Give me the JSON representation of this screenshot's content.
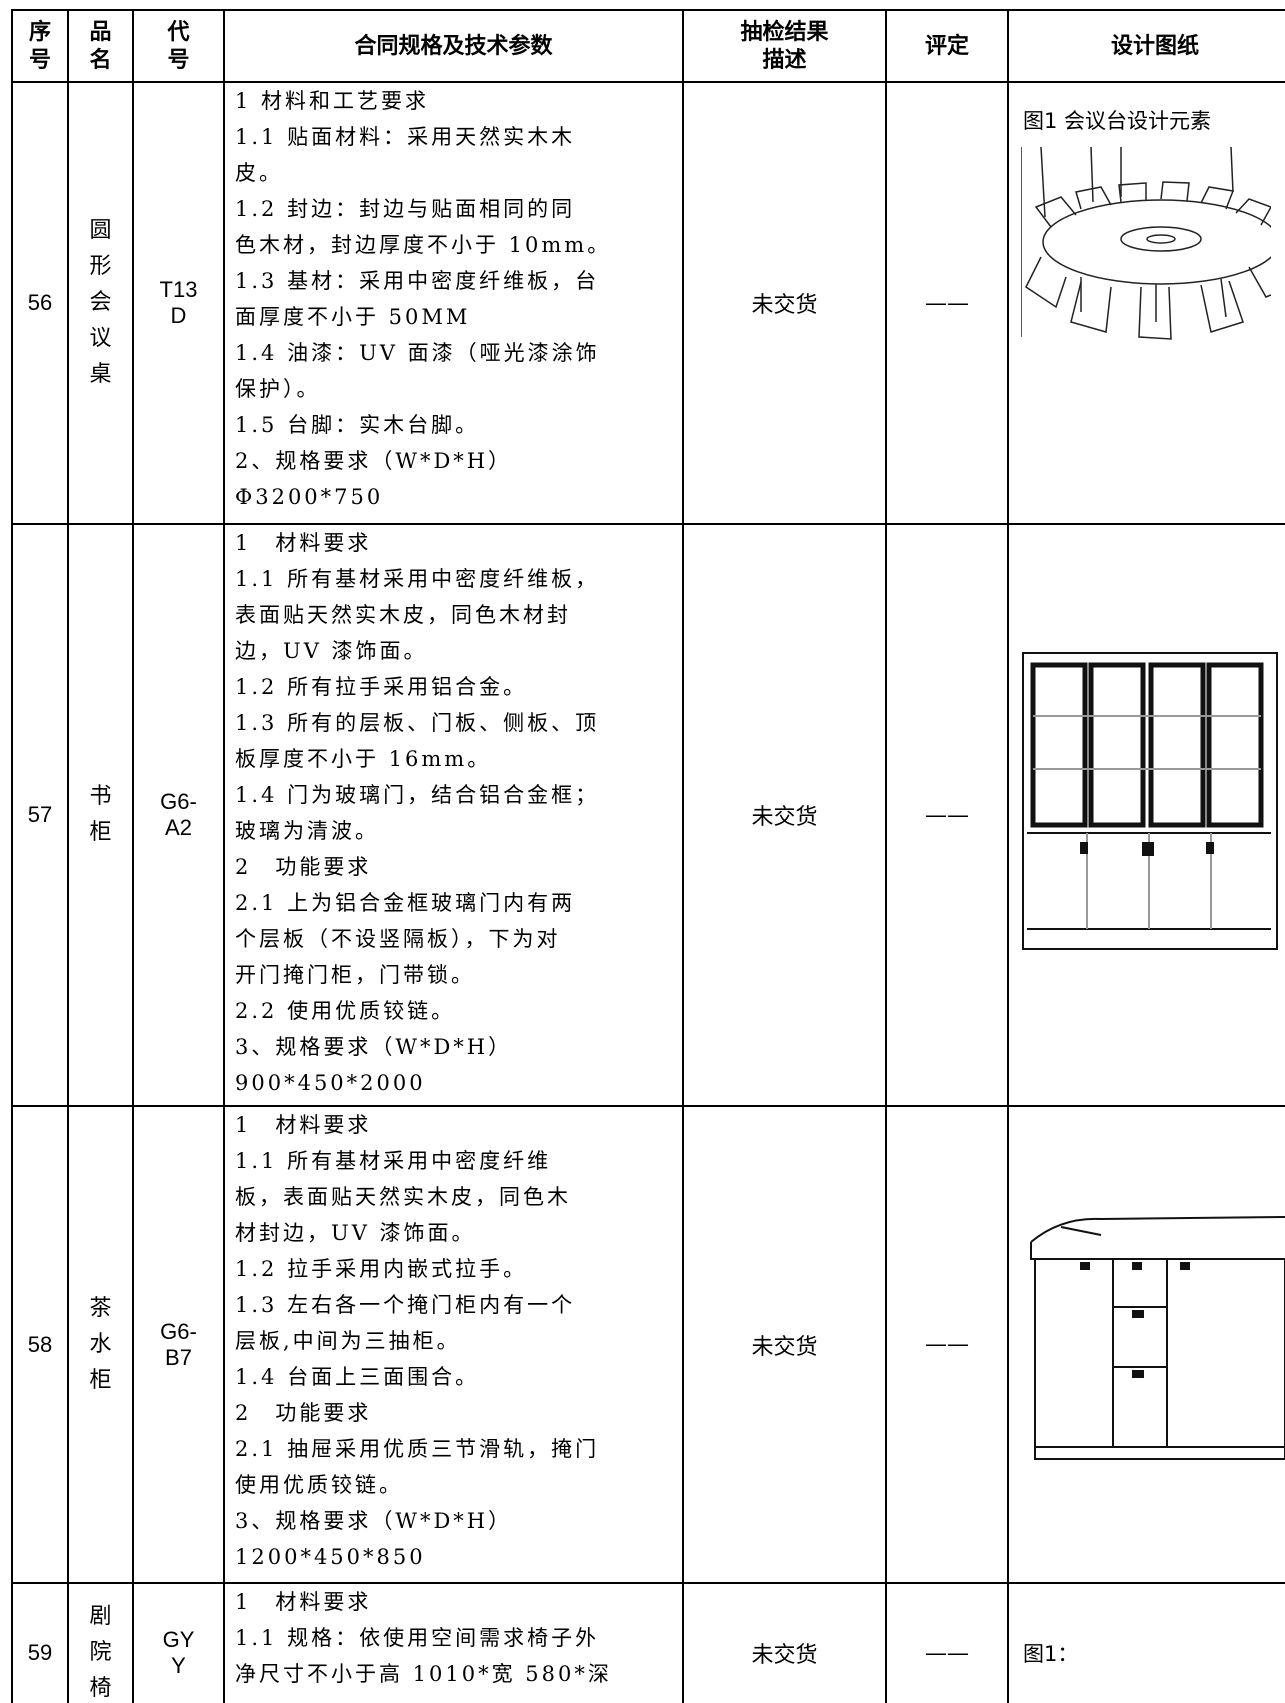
{
  "table": {
    "header": [
      "序号",
      "品名",
      "代号",
      "合同规格及技术参数",
      "抽检结果描述",
      "评定",
      "设计图纸"
    ],
    "rows": [
      {
        "no": "56",
        "name": "圆形会议桌",
        "code": "T13D",
        "spec": [
          "1 材料和工艺要求",
          "1.1 贴面材料：采用天然实木木",
          "皮。",
          "1.2 封边：封边与贴面相同的同",
          "色木材，封边厚度不小于 10mm。",
          "1.3 基材：采用中密度纤维板，台",
          "面厚度不小于 50MM",
          "1.4 油漆：UV 面漆（哑光漆涂饰",
          "保护）。",
          "1.5 台脚：实木台脚。",
          "2、规格要求（W*D*H）",
          "Φ3200*750"
        ],
        "result": "未交货",
        "rating": "——",
        "drawing": "图1 会议台设计元素"
      },
      {
        "no": "57",
        "name": "书柜",
        "code": "G6-A2",
        "spec": [
          "1　材料要求",
          "1.1 所有基材采用中密度纤维板，",
          "表面贴天然实木皮，同色木材封",
          "边，UV 漆饰面。",
          "1.2 所有拉手采用铝合金。",
          "1.3 所有的层板、门板、侧板、顶",
          "板厚度不小于 16mm。",
          "1.4 门为玻璃门，结合铝合金框；",
          "玻璃为清波。",
          "2　功能要求",
          "2.1 上为铝合金框玻璃门内有两",
          "个层板（不设竖隔板），下为对",
          "开门掩门柜，门带锁。",
          "2.2 使用优质铰链。",
          "3、规格要求（W*D*H）",
          "900*450*2000"
        ],
        "result": "未交货",
        "rating": "——"
      },
      {
        "no": "58",
        "name": "茶水柜",
        "code": "G6-B7",
        "spec": [
          "1　材料要求",
          "1.1 所有基材采用中密度纤维",
          "板，表面贴天然实木皮，同色木",
          "材封边，UV 漆饰面。",
          "1.2 拉手采用内嵌式拉手。",
          "1.3 左右各一个掩门柜内有一个",
          "层板,中间为三抽柜。",
          "1.4 台面上三面围合。",
          "2　功能要求",
          "2.1 抽屉采用优质三节滑轨，掩门",
          "使用优质铰链。",
          "3、规格要求（W*D*H）",
          "1200*450*850"
        ],
        "result": "未交货",
        "rating": "——"
      },
      {
        "no": "59",
        "name": "剧院椅",
        "code": "GYY",
        "spec": [
          "1　材料要求",
          "1.1 规格：依使用空间需求椅子外",
          "净尺寸不小于高 1010*宽 580*深"
        ],
        "result": "未交货",
        "rating": "——",
        "drawing": "图1："
      }
    ]
  }
}
